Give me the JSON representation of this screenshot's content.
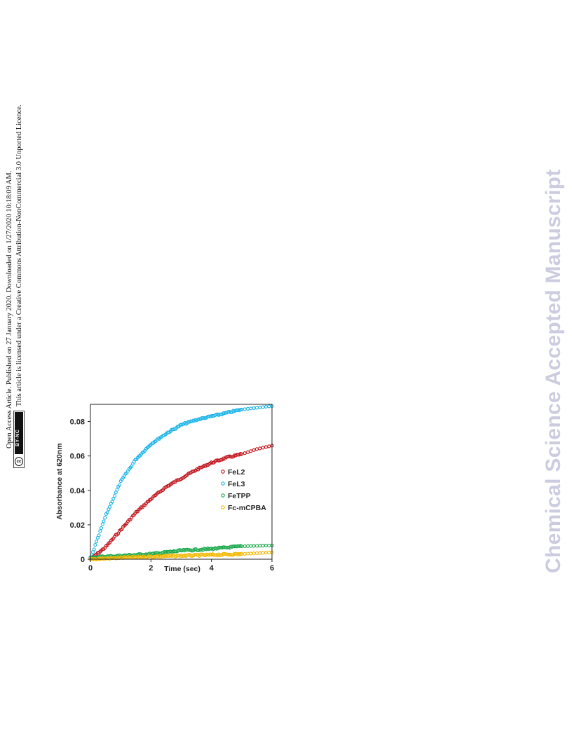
{
  "sidebar": {
    "open_access_line": "Open Access Article. Published on 27 January 2020. Downloaded on 1/27/2020 10:18:09 AM.",
    "license_line": "This article is licensed under a Creative Commons Attribution-NonCommercial 3.0 Unported Licence.",
    "cc_badge_text": "BY-NC",
    "cc_badge_symbol": "cc"
  },
  "watermark": "Chemical Science Accepted Manuscript",
  "chart_data": {
    "type": "scatter",
    "xlabel": "Time (sec)",
    "ylabel": "Absorbance at 620nm",
    "xlim": [
      0,
      6
    ],
    "ylim": [
      0,
      0.09
    ],
    "xticks": [
      "0",
      "2",
      "4",
      "6"
    ],
    "yticks": [
      "0",
      "0.02",
      "0.04",
      "0.06",
      "0.08"
    ],
    "legend_position": "right-middle",
    "series": [
      {
        "name": "FeL2",
        "color": "#c0141c",
        "x": [
          0,
          0.5,
          1,
          1.5,
          2,
          2.5,
          3,
          3.5,
          4,
          4.5,
          5,
          5.5,
          6
        ],
        "y": [
          0,
          0.007,
          0.017,
          0.027,
          0.035,
          0.042,
          0.047,
          0.052,
          0.056,
          0.059,
          0.061,
          0.064,
          0.066
        ]
      },
      {
        "name": "FeL3",
        "color": "#1ab4e8",
        "x": [
          0,
          0.5,
          1,
          1.5,
          2,
          2.5,
          3,
          3.5,
          4,
          4.5,
          5,
          5.5,
          6
        ],
        "y": [
          0,
          0.025,
          0.045,
          0.058,
          0.067,
          0.073,
          0.078,
          0.081,
          0.083,
          0.085,
          0.087,
          0.088,
          0.089
        ]
      },
      {
        "name": "FeTPP",
        "color": "#1aa84a",
        "x": [
          0,
          1,
          2,
          3,
          4,
          5,
          6
        ],
        "y": [
          0.001,
          0.002,
          0.003,
          0.005,
          0.006,
          0.0075,
          0.008
        ]
      },
      {
        "name": "Fc-mCPBA",
        "color": "#f2b800",
        "x": [
          0,
          1,
          2,
          3,
          4,
          5,
          6
        ],
        "y": [
          0,
          0.0008,
          0.0015,
          0.002,
          0.0025,
          0.003,
          0.004
        ]
      }
    ]
  }
}
